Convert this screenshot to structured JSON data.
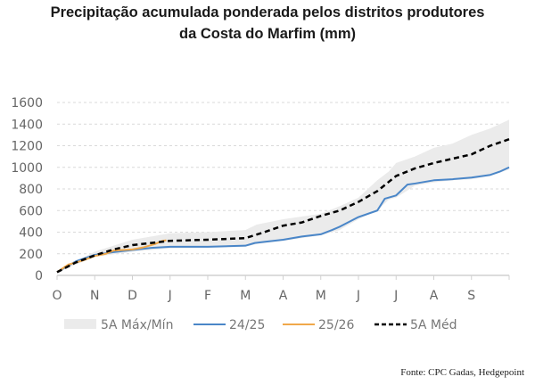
{
  "chart_data": {
    "type": "line",
    "title": "Precipitação acumulada ponderada pelos distritos produtores da Costa do Marfim (mm)",
    "title_lines": [
      "Precipitação acumulada ponderada pelos distritos produtores",
      "da Costa do Marfim (mm)"
    ],
    "xlabel": "",
    "ylabel": "",
    "x_tick_labels": [
      "O",
      "N",
      "D",
      "J",
      "F",
      "M",
      "A",
      "M",
      "J",
      "J",
      "A",
      "S"
    ],
    "y_ticks": [
      0,
      200,
      400,
      600,
      800,
      1000,
      1200,
      1400,
      1600
    ],
    "ylim": [
      0,
      1600
    ],
    "xlim_months": [
      0,
      12
    ],
    "grid": "horizontal dashed",
    "legend_placement": "bottom",
    "band": {
      "name": "5A Máx/Mín",
      "color": "#ebebeb",
      "x": [
        0,
        1,
        2,
        3,
        4,
        5,
        5.3,
        6,
        7,
        7.5,
        8,
        8.5,
        8.8,
        9,
        9.5,
        10,
        10.5,
        11,
        11.5,
        12
      ],
      "max": [
        40,
        220,
        330,
        390,
        400,
        420,
        470,
        520,
        570,
        640,
        720,
        880,
        960,
        1040,
        1100,
        1180,
        1220,
        1300,
        1360,
        1440
      ],
      "min": [
        30,
        170,
        220,
        250,
        255,
        265,
        290,
        320,
        370,
        420,
        520,
        600,
        700,
        720,
        830,
        860,
        880,
        890,
        920,
        980
      ]
    },
    "series": [
      {
        "name": "24/25",
        "color": "#4a86c8",
        "dash": false,
        "x": [
          0,
          0.5,
          1,
          1.5,
          2,
          2.5,
          3,
          4,
          5,
          5.25,
          5.5,
          6,
          6.5,
          7,
          7.3,
          7.5,
          8,
          8.5,
          8.7,
          9,
          9.3,
          9.5,
          10,
          10.5,
          11,
          11.5,
          11.75,
          12
        ],
        "y": [
          30,
          130,
          190,
          215,
          235,
          255,
          265,
          265,
          275,
          300,
          310,
          330,
          360,
          380,
          420,
          450,
          540,
          600,
          710,
          740,
          840,
          850,
          880,
          890,
          905,
          930,
          960,
          1000
        ]
      },
      {
        "name": "25/26",
        "color": "#f0a84a",
        "dash": false,
        "x": [
          0,
          0.3,
          0.7,
          1,
          1.3,
          1.5,
          2,
          2.3,
          2.6,
          2.8,
          2.9
        ],
        "y": [
          30,
          100,
          140,
          180,
          200,
          230,
          240,
          260,
          290,
          320,
          325
        ]
      },
      {
        "name": "5A Méd",
        "color": "#000000",
        "dash": true,
        "x": [
          0,
          0.5,
          1,
          1.5,
          2,
          2.5,
          3,
          4,
          5,
          5.5,
          6,
          6.5,
          7,
          7.5,
          8,
          8.5,
          9,
          9.5,
          10,
          10.5,
          11,
          11.5,
          12
        ],
        "y": [
          30,
          120,
          185,
          240,
          280,
          300,
          320,
          330,
          345,
          400,
          460,
          490,
          550,
          600,
          680,
          780,
          920,
          990,
          1040,
          1080,
          1120,
          1200,
          1260
        ]
      }
    ]
  },
  "source": "Fonte: CPC Gadas, Hedgepoint"
}
